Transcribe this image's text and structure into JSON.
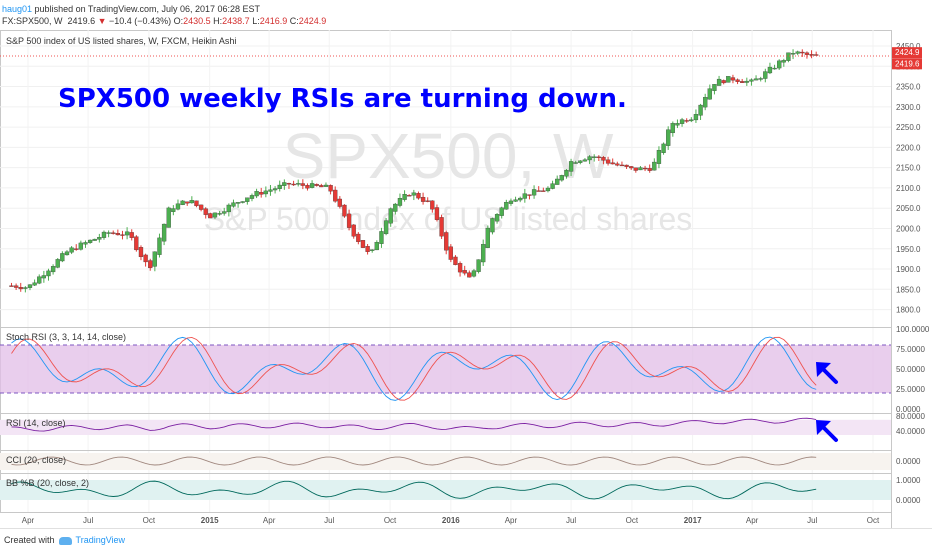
{
  "header": {
    "user": "haug01",
    "published": " published on TradingView.com, July 06, 2017 06:28 EST",
    "symbol": "FX:SPX500, W",
    "last": "2419.6",
    "arrow": "▼",
    "change": "−10.4 (−0.43%)",
    "o_label": "O:",
    "o_value": "2430.5",
    "h_label": "H:",
    "h_value": "2438.7",
    "l_label": "L:",
    "l_value": "2416.9",
    "c_label": "C:",
    "c_value": "2424.9"
  },
  "annotation": {
    "text": "SPX500 weekly RSIs are turning down.",
    "color": "#0000ff"
  },
  "watermark": {
    "symbol": "SPX500, W",
    "description": "S&P 500 index of US listed shares"
  },
  "main_pane": {
    "legend": "S&P 500 index of US listed shares, W, FXCM, Heikin Ashi",
    "y_ticks": [
      "2450.0",
      "2400.0",
      "2350.0",
      "2300.0",
      "2250.0",
      "2200.0",
      "2150.0",
      "2100.0",
      "2050.0",
      "2000.0",
      "1950.0",
      "1900.0",
      "1850.0",
      "1800.0"
    ],
    "price_tags": [
      "2424.9",
      "2419.6"
    ]
  },
  "stoch_pane": {
    "legend": "Stoch RSI (3, 3, 14, 14, close)",
    "y_ticks": [
      "100.0000",
      "75.0000",
      "50.0000",
      "25.0000",
      "0.0000"
    ]
  },
  "rsi_pane": {
    "legend": "RSI (14, close)",
    "y_ticks": [
      "80.0000",
      "40.0000"
    ]
  },
  "cci_pane": {
    "legend": "CCI (20, close)",
    "y_ticks": [
      "0.0000"
    ]
  },
  "bb_pane": {
    "legend": "BB %B (20, close, 2)",
    "y_ticks": [
      "1.0000",
      "0.0000"
    ]
  },
  "x_axis": {
    "labels": [
      "Apr",
      "Jul",
      "Oct",
      "2015",
      "Apr",
      "Jul",
      "Oct",
      "2016",
      "Apr",
      "Jul",
      "Oct",
      "2017",
      "Apr",
      "Jul",
      "Oct"
    ]
  },
  "footer": {
    "created": "Created with",
    "brand": "TradingView"
  },
  "colors": {
    "up": "#4caf50",
    "down": "#e53935",
    "band_fill": "#e1bee7",
    "stoch_k": "#2196f3",
    "stoch_d": "#ef5350",
    "rsi_line": "#7b1fa2",
    "cci_line": "#a1887f",
    "bb_line": "#00695c",
    "arrow": "#0000ff"
  },
  "chart_data": {
    "type": "candlestick",
    "title": "S&P 500 index of US listed shares, W, FXCM, Heikin Ashi",
    "x_range": [
      "2014-04",
      "2017-10"
    ],
    "ylim": [
      1780,
      2470
    ],
    "close_path": [
      [
        "2014-03",
        1860
      ],
      [
        "2014-04",
        1855
      ],
      [
        "2014-06",
        1945
      ],
      [
        "2014-08",
        1990
      ],
      [
        "2014-09",
        1985
      ],
      [
        "2014-10",
        1900
      ],
      [
        "2014-11",
        2050
      ],
      [
        "2014-12",
        2070
      ],
      [
        "2015-01",
        2030
      ],
      [
        "2015-03",
        2080
      ],
      [
        "2015-05",
        2110
      ],
      [
        "2015-07",
        2100
      ],
      [
        "2015-08",
        2000
      ],
      [
        "2015-09",
        1930
      ],
      [
        "2015-10",
        2050
      ],
      [
        "2015-11",
        2090
      ],
      [
        "2015-12",
        2060
      ],
      [
        "2016-01",
        1920
      ],
      [
        "2016-02",
        1870
      ],
      [
        "2016-03",
        2020
      ],
      [
        "2016-04",
        2075
      ],
      [
        "2016-06",
        2100
      ],
      [
        "2016-07",
        2165
      ],
      [
        "2016-08",
        2180
      ],
      [
        "2016-09",
        2160
      ],
      [
        "2016-10",
        2145
      ],
      [
        "2016-11",
        2150
      ],
      [
        "2016-12",
        2260
      ],
      [
        "2017-01",
        2275
      ],
      [
        "2017-02",
        2360
      ],
      [
        "2017-03",
        2370
      ],
      [
        "2017-04",
        2360
      ],
      [
        "2017-05",
        2395
      ],
      [
        "2017-06",
        2435
      ],
      [
        "2017-07",
        2425
      ]
    ]
  }
}
